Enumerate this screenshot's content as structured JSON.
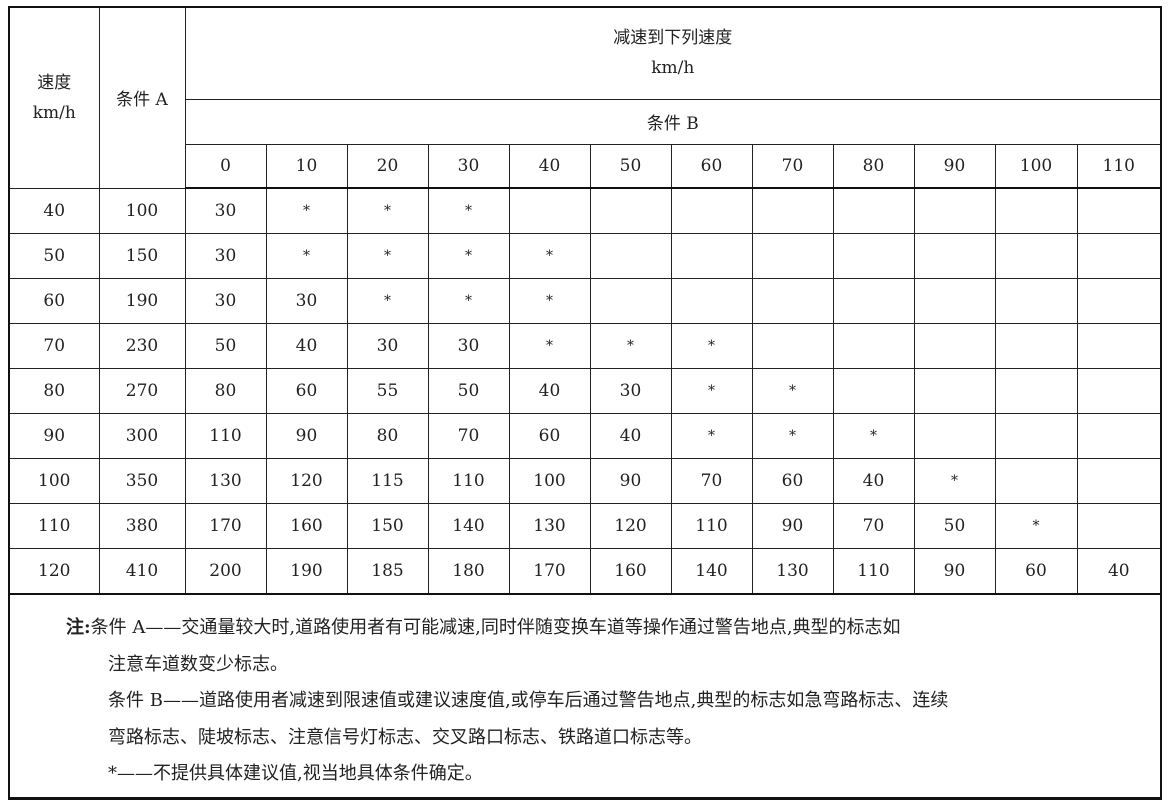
{
  "header": {
    "speed_label": "速度",
    "speed_unit": "km/h",
    "condition_a": "条件 A",
    "decel_title": "减速到下列速度",
    "decel_unit": "km/h",
    "condition_b": "条件 B",
    "target_speeds": [
      "0",
      "10",
      "20",
      "30",
      "40",
      "50",
      "60",
      "70",
      "80",
      "90",
      "100",
      "110"
    ]
  },
  "rows": [
    {
      "speed": "40",
      "a": "100",
      "b": [
        "30",
        "*",
        "*",
        "*",
        "",
        "",
        "",
        "",
        "",
        "",
        "",
        ""
      ]
    },
    {
      "speed": "50",
      "a": "150",
      "b": [
        "30",
        "*",
        "*",
        "*",
        "*",
        "",
        "",
        "",
        "",
        "",
        "",
        ""
      ]
    },
    {
      "speed": "60",
      "a": "190",
      "b": [
        "30",
        "30",
        "*",
        "*",
        "*",
        "",
        "",
        "",
        "",
        "",
        "",
        ""
      ]
    },
    {
      "speed": "70",
      "a": "230",
      "b": [
        "50",
        "40",
        "30",
        "30",
        "*",
        "*",
        "*",
        "",
        "",
        "",
        "",
        ""
      ]
    },
    {
      "speed": "80",
      "a": "270",
      "b": [
        "80",
        "60",
        "55",
        "50",
        "40",
        "30",
        "*",
        "*",
        "",
        "",
        "",
        ""
      ]
    },
    {
      "speed": "90",
      "a": "300",
      "b": [
        "110",
        "90",
        "80",
        "70",
        "60",
        "40",
        "*",
        "*",
        "*",
        "",
        "",
        ""
      ]
    },
    {
      "speed": "100",
      "a": "350",
      "b": [
        "130",
        "120",
        "115",
        "110",
        "100",
        "90",
        "70",
        "60",
        "40",
        "*",
        "",
        ""
      ]
    },
    {
      "speed": "110",
      "a": "380",
      "b": [
        "170",
        "160",
        "150",
        "140",
        "130",
        "120",
        "110",
        "90",
        "70",
        "50",
        "*",
        ""
      ]
    },
    {
      "speed": "120",
      "a": "410",
      "b": [
        "200",
        "190",
        "185",
        "180",
        "170",
        "160",
        "140",
        "130",
        "110",
        "90",
        "60",
        "40"
      ]
    }
  ],
  "notes": {
    "label": "注:",
    "line1": "条件 A——交通量较大时,道路使用者有可能减速,同时伴随变换车道等操作通过警告地点,典型的标志如",
    "line2": "注意车道数变少标志。",
    "line3": "条件 B——道路使用者减速到限速值或建议速度值,或停车后通过警告地点,典型的标志如急弯路标志、连续",
    "line4": "弯路标志、陡坡标志、注意信号灯标志、交叉路口标志、铁路道口标志等。",
    "line5": "*——不提供具体建议值,视当地具体条件确定。"
  }
}
